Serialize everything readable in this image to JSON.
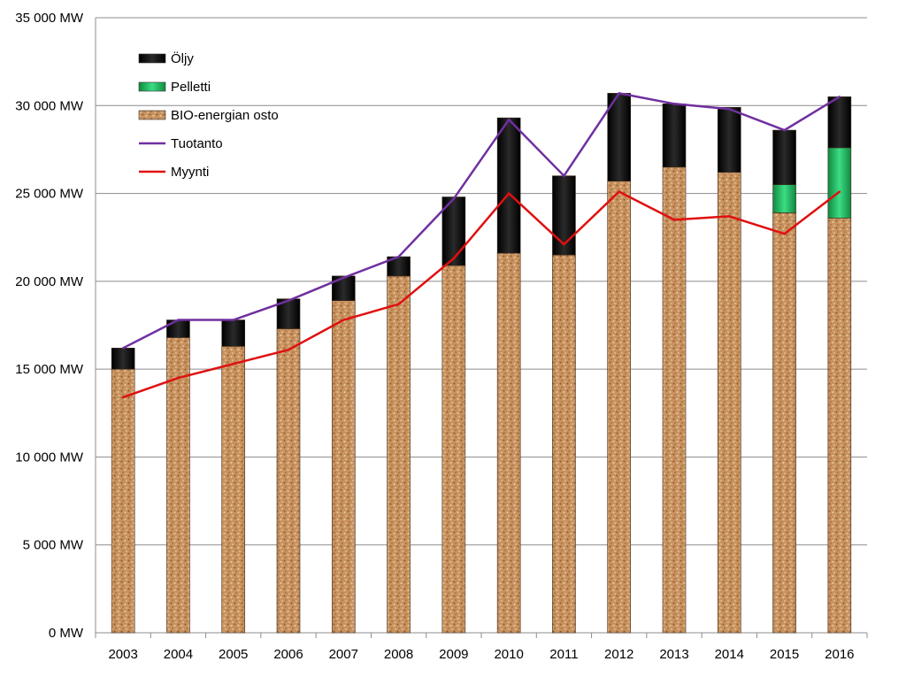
{
  "chart_data": {
    "type": "bar",
    "stacked": true,
    "title": "",
    "xlabel": "",
    "ylabel": "",
    "ylim": [
      0,
      35000
    ],
    "y_ticks": [
      0,
      5000,
      10000,
      15000,
      20000,
      25000,
      30000,
      35000
    ],
    "y_tick_labels": [
      "0 MW",
      "5 000 MW",
      "10 000 MW",
      "15 000 MW",
      "20 000 MW",
      "25 000 MW",
      "30 000 MW",
      "35 000 MW"
    ],
    "grid": true,
    "legend_position": "top-left",
    "categories": [
      "2003",
      "2004",
      "2005",
      "2006",
      "2007",
      "2008",
      "2009",
      "2010",
      "2011",
      "2012",
      "2013",
      "2014",
      "2015",
      "2016"
    ],
    "series": [
      {
        "name": "BIO-energian osto",
        "kind": "bar",
        "color": "#c8925f",
        "values": [
          15000,
          16800,
          16300,
          17300,
          18900,
          20300,
          20900,
          21600,
          21500,
          25700,
          26500,
          26200,
          23900,
          23600
        ]
      },
      {
        "name": "Pelletti",
        "kind": "bar",
        "color": "#22b060",
        "values": [
          0,
          0,
          0,
          0,
          0,
          0,
          0,
          0,
          0,
          0,
          0,
          0,
          1600,
          4000
        ]
      },
      {
        "name": "Öljy",
        "kind": "bar",
        "color": "#111111",
        "values": [
          1200,
          1000,
          1500,
          1700,
          1400,
          1100,
          3900,
          7700,
          4500,
          5000,
          3600,
          3700,
          3100,
          2900
        ]
      },
      {
        "name": "Tuotanto",
        "kind": "line",
        "color": "#7030a0",
        "values": [
          16200,
          17800,
          17800,
          18900,
          20200,
          21400,
          24700,
          29200,
          26000,
          30700,
          30100,
          29800,
          28600,
          30500
        ]
      },
      {
        "name": "Myynti",
        "kind": "line",
        "color": "#e01010",
        "values": [
          13400,
          14500,
          15300,
          16100,
          17800,
          18700,
          21300,
          25000,
          22100,
          25100,
          23500,
          23700,
          22700,
          25100
        ]
      }
    ],
    "legend_order": [
      "Öljy",
      "Pelletti",
      "BIO-energian osto",
      "Tuotanto",
      "Myynti"
    ]
  }
}
